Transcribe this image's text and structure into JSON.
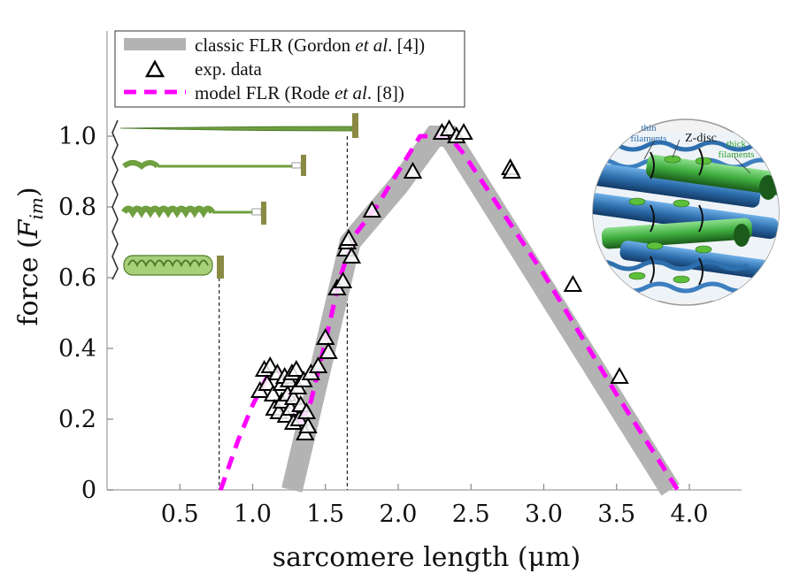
{
  "chart_data": {
    "type": "line",
    "xlabel": "sarcomere length (μm)",
    "ylabel_main": "force (",
    "ylabel_var": "F",
    "ylabel_sub": "im",
    "ylabel_close": ")",
    "xlim": [
      0,
      4.2
    ],
    "ylim": [
      0,
      1.05
    ],
    "x_ticks": [
      "0.5",
      "1.0",
      "1.5",
      "2.0",
      "2.5",
      "3.0",
      "3.5",
      "4.0"
    ],
    "y_ticks": [
      "0",
      "0.2",
      "0.4",
      "0.6",
      "0.8",
      "1.0"
    ],
    "legend": {
      "classic": {
        "pre": "classic FLR (Gordon ",
        "em": "et al",
        "post": ". [4])"
      },
      "exp": {
        "text": "exp. data"
      },
      "model": {
        "pre": "model FLR (Rode ",
        "em": "et al",
        "post": ". [8])"
      }
    },
    "series": [
      {
        "name": "classic FLR (Gordon et al. [4])",
        "color": "#b3b3b3",
        "x": [
          1.27,
          1.67,
          2.0,
          2.25,
          2.35,
          3.87
        ],
        "y": [
          0.0,
          0.7,
          0.86,
          1.0,
          1.0,
          0.0
        ]
      },
      {
        "name": "model FLR (Rode et al. [8])",
        "color": "#ff00ff",
        "x": [
          0.78,
          0.9,
          1.0,
          1.1,
          1.17,
          1.22,
          1.27,
          1.32,
          1.4,
          1.5,
          1.6,
          1.7,
          1.85,
          2.0,
          2.15,
          2.25,
          2.35,
          2.45,
          3.0,
          3.5,
          3.92
        ],
        "y": [
          0.0,
          0.14,
          0.24,
          0.32,
          0.34,
          0.31,
          0.25,
          0.18,
          0.25,
          0.42,
          0.6,
          0.72,
          0.8,
          0.9,
          1.0,
          1.0,
          1.0,
          0.95,
          0.61,
          0.27,
          0.0
        ]
      },
      {
        "name": "exp. data",
        "x": [
          1.05,
          1.08,
          1.1,
          1.12,
          1.14,
          1.15,
          1.17,
          1.18,
          1.2,
          1.2,
          1.22,
          1.23,
          1.24,
          1.25,
          1.26,
          1.27,
          1.28,
          1.28,
          1.3,
          1.31,
          1.32,
          1.33,
          1.35,
          1.36,
          1.37,
          1.38,
          1.4,
          1.45,
          1.5,
          1.52,
          1.58,
          1.62,
          1.64,
          1.65,
          1.66,
          1.68,
          1.82,
          2.1,
          2.3,
          2.35,
          2.4,
          2.45,
          2.77,
          2.78,
          3.2,
          3.52
        ],
        "y": [
          0.28,
          0.34,
          0.3,
          0.35,
          0.27,
          0.23,
          0.33,
          0.22,
          0.3,
          0.25,
          0.32,
          0.21,
          0.27,
          0.31,
          0.23,
          0.33,
          0.19,
          0.26,
          0.34,
          0.29,
          0.2,
          0.24,
          0.31,
          0.16,
          0.22,
          0.18,
          0.33,
          0.35,
          0.43,
          0.39,
          0.57,
          0.59,
          0.68,
          0.7,
          0.71,
          0.66,
          0.79,
          0.9,
          1.01,
          1.02,
          1.0,
          1.01,
          0.91,
          0.9,
          0.58,
          0.32
        ]
      }
    ],
    "reference_lines_x": [
      0.77,
      1.65
    ],
    "inset_labels": {
      "thin": "thin filaments",
      "zdisc": "Z-disc",
      "thick": "thick filaments"
    },
    "colors": {
      "classic": "#b3b3b3",
      "model": "#ff00ff",
      "titin": "#8fbf5a",
      "titin_dark": "#4f7f2a",
      "zline": "#8a8a45",
      "thin": "#2e6fae",
      "thick": "#3fae3f"
    }
  }
}
